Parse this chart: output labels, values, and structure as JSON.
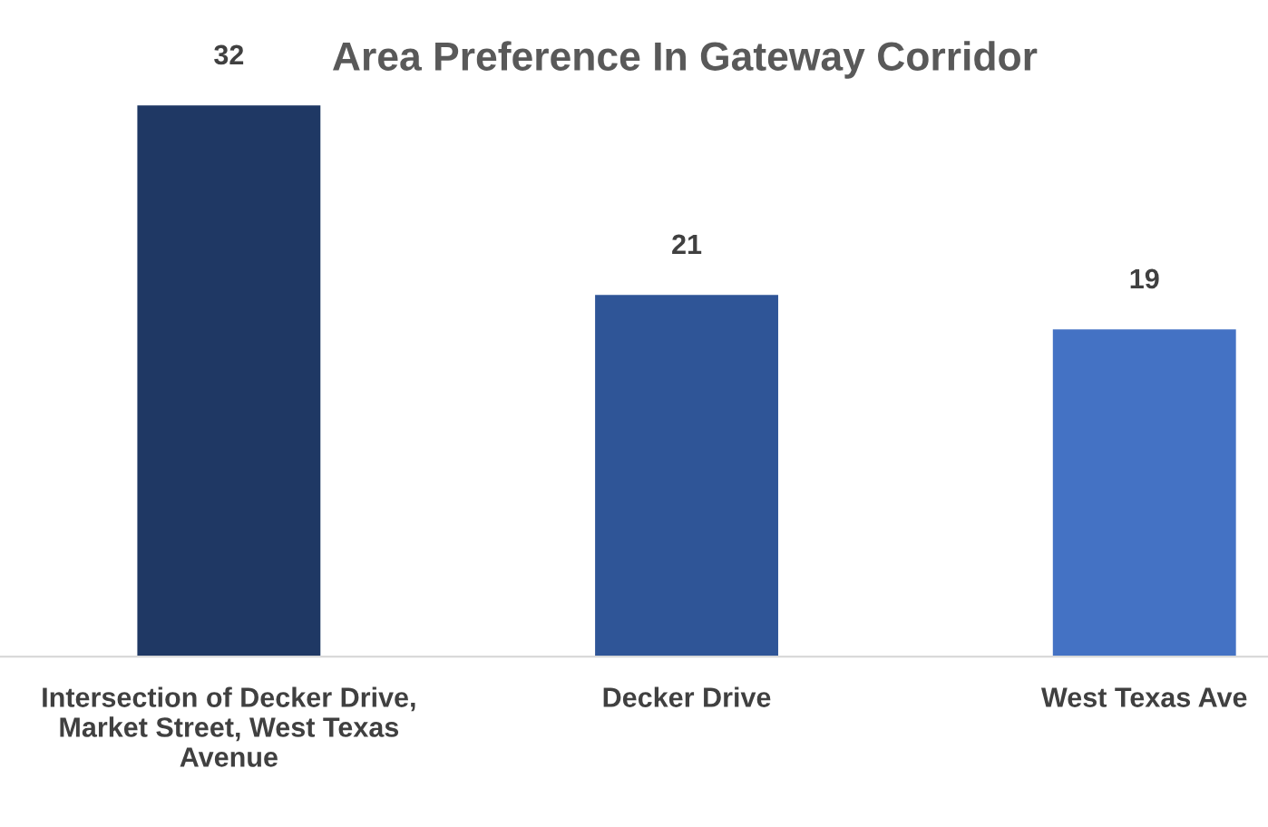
{
  "chart_data": {
    "type": "bar",
    "title": "Area Preference In Gateway Corridor",
    "categories": [
      "Intersection of Decker Drive, Market Street, West Texas Avenue",
      "Decker Drive",
      "West Texas Ave"
    ],
    "values": [
      32,
      21,
      19
    ],
    "colors": [
      "#1f3864",
      "#2f5597",
      "#4472c4"
    ],
    "data_labels": true,
    "grid": false,
    "legend": false
  }
}
